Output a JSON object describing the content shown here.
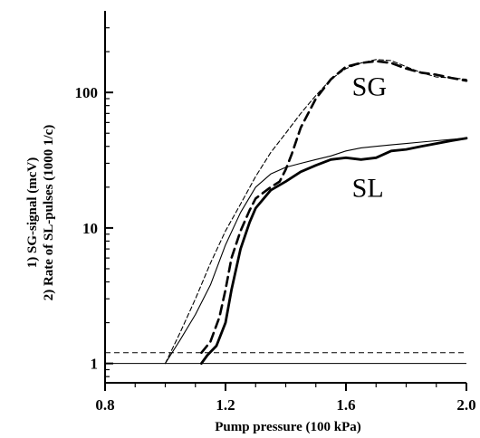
{
  "chart_data": {
    "type": "line",
    "xlabel": "Pump pressure (100 kPa)",
    "ylabel_lines": [
      "1) SG-signal (mcV)",
      "2) Rate of SL-pulses (1000 1/c)"
    ],
    "yscale": "log",
    "xlim": [
      0.8,
      2.0
    ],
    "ylim": [
      0.72,
      400
    ],
    "x_ticks": [
      0.8,
      1.2,
      1.6,
      2.0
    ],
    "x_tick_labels": [
      "0.8",
      "1.2",
      "1.6",
      "2.0"
    ],
    "y_ticks": [
      1,
      10,
      100
    ],
    "y_tick_labels": [
      "1",
      "10",
      "100"
    ],
    "grid": false,
    "annotations": [
      {
        "text": "SG",
        "x": 1.62,
        "y": 95
      },
      {
        "text": "SL",
        "x": 1.62,
        "y": 17
      }
    ],
    "baselines": [
      {
        "y": 1.2,
        "style": "dashed"
      },
      {
        "y": 1.0,
        "style": "solid"
      }
    ],
    "series": [
      {
        "style": "thin-dashed",
        "x": [
          1.0,
          1.05,
          1.1,
          1.15,
          1.2,
          1.25,
          1.3,
          1.35,
          1.4,
          1.45,
          1.5,
          1.55,
          1.6,
          1.65,
          1.7,
          1.75,
          1.8,
          1.85,
          1.9,
          1.95,
          2.0
        ],
        "y": [
          1.0,
          1.7,
          3.0,
          5.5,
          9.5,
          15,
          24,
          36,
          50,
          70,
          95,
          125,
          150,
          165,
          175,
          172,
          155,
          140,
          130,
          128,
          125
        ]
      },
      {
        "style": "thick-dashed",
        "x": [
          1.12,
          1.15,
          1.18,
          1.2,
          1.22,
          1.25,
          1.28,
          1.3,
          1.35,
          1.38,
          1.4,
          1.42,
          1.45,
          1.5,
          1.55,
          1.6,
          1.65,
          1.7,
          1.75,
          1.8,
          1.85,
          1.9,
          1.95,
          2.0
        ],
        "y": [
          1.2,
          1.45,
          2.2,
          3.5,
          6.0,
          9.5,
          13.5,
          16.5,
          20,
          22,
          27,
          35,
          55,
          90,
          125,
          155,
          165,
          170,
          165,
          150,
          140,
          135,
          128,
          122
        ]
      },
      {
        "style": "thin-solid",
        "x": [
          1.0,
          1.05,
          1.1,
          1.15,
          1.2,
          1.25,
          1.3,
          1.35,
          1.4,
          1.45,
          1.5,
          1.55,
          1.6,
          1.65,
          1.7,
          1.75,
          1.8,
          1.85,
          1.9,
          1.95,
          2.0
        ],
        "y": [
          1.0,
          1.5,
          2.3,
          3.8,
          7.5,
          13,
          20,
          25,
          28,
          30,
          32,
          34,
          37,
          39,
          40,
          41,
          42,
          43,
          44,
          45,
          46
        ]
      },
      {
        "style": "thick-solid",
        "x": [
          1.12,
          1.14,
          1.17,
          1.2,
          1.22,
          1.25,
          1.28,
          1.3,
          1.35,
          1.4,
          1.45,
          1.5,
          1.55,
          1.6,
          1.65,
          1.7,
          1.75,
          1.8,
          1.85,
          1.9,
          1.95,
          2.0
        ],
        "y": [
          1.0,
          1.15,
          1.35,
          2.0,
          3.5,
          7.0,
          11,
          14,
          19,
          22,
          26,
          29,
          32,
          33,
          32,
          33,
          37,
          38,
          40,
          42,
          44,
          46
        ]
      }
    ]
  }
}
